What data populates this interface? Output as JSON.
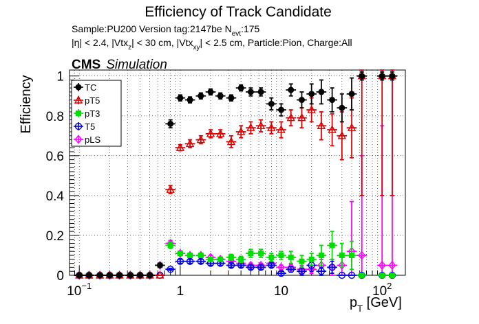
{
  "chart_data": {
    "type": "scatter",
    "title": "Efficiency of Track Candidate",
    "subtitle_lines": [
      [
        "Sample:PU200   Version tag:2147be  N",
        "evt",
        ":175"
      ],
      [
        "|η| < 2.4, |Vtx",
        "z",
        "| < 30 cm, |Vtx",
        "xy",
        "| < 2.5 cm, Particle:Pion, Charge:All"
      ]
    ],
    "cms_label": "CMS",
    "cms_sublabel": "Simulation",
    "ylabel": "Efficiency",
    "xlabel_main": "p",
    "xlabel_sub": "T",
    "xlabel_unit": " [GeV]",
    "xscale": "log",
    "xlim": [
      0.08,
      170
    ],
    "ylim": [
      0,
      1.03
    ],
    "x_tick_labels": [
      {
        "value": 0.1,
        "base": "10",
        "exp": "−1"
      },
      {
        "value": 1,
        "base": "1",
        "exp": ""
      },
      {
        "value": 10,
        "base": "10",
        "exp": ""
      },
      {
        "value": 100,
        "base": "10",
        "exp": "2"
      }
    ],
    "y_ticks": [
      0,
      0.2,
      0.4,
      0.6,
      0.8,
      1
    ],
    "y_tick_labels": [
      "0",
      "0.2",
      "0.4",
      "0.6",
      "0.8",
      "1"
    ],
    "grid": true,
    "legend_position": "top-left",
    "series": [
      {
        "name": "TC",
        "color": "#000000",
        "marker": "filled-circle",
        "points": [
          {
            "x": 0.1,
            "y": 0
          },
          {
            "x": 0.125,
            "y": 0
          },
          {
            "x": 0.16,
            "y": 0
          },
          {
            "x": 0.2,
            "y": 0
          },
          {
            "x": 0.25,
            "y": 0
          },
          {
            "x": 0.32,
            "y": 0
          },
          {
            "x": 0.4,
            "y": 0
          },
          {
            "x": 0.5,
            "y": 0
          },
          {
            "x": 0.63,
            "y": 0.05
          },
          {
            "x": 0.8,
            "y": 0.76,
            "err": 0.02
          },
          {
            "x": 1,
            "y": 0.89,
            "err": 0.015
          },
          {
            "x": 1.25,
            "y": 0.88,
            "err": 0.015
          },
          {
            "x": 1.6,
            "y": 0.9,
            "err": 0.015
          },
          {
            "x": 2,
            "y": 0.92,
            "err": 0.015
          },
          {
            "x": 2.5,
            "y": 0.9,
            "err": 0.015
          },
          {
            "x": 3.2,
            "y": 0.89,
            "err": 0.015
          },
          {
            "x": 4,
            "y": 0.94,
            "err": 0.015
          },
          {
            "x": 5,
            "y": 0.92,
            "err": 0.02
          },
          {
            "x": 6.3,
            "y": 0.92,
            "err": 0.02
          },
          {
            "x": 8,
            "y": 0.86,
            "err": 0.03
          },
          {
            "x": 10,
            "y": 0.83,
            "err": 0.03
          },
          {
            "x": 12.5,
            "y": 0.93,
            "err": 0.03
          },
          {
            "x": 16,
            "y": 0.88,
            "err": 0.04
          },
          {
            "x": 20,
            "y": 0.91,
            "err": 0.05
          },
          {
            "x": 25,
            "y": 0.92,
            "err": 0.06
          },
          {
            "x": 32,
            "y": 0.88,
            "err": 0.06
          },
          {
            "x": 40,
            "y": 0.84,
            "err": 0.07
          },
          {
            "x": 50,
            "y": 0.91,
            "err": 0.08
          },
          {
            "x": 63,
            "y": 1,
            "err": 0.02
          },
          {
            "x": 100,
            "y": 1,
            "err": 0.02
          },
          {
            "x": 126,
            "y": 1,
            "err": 0.02
          }
        ]
      },
      {
        "name": "pT5",
        "color": "#dd0000",
        "marker": "open-triangle",
        "points": [
          {
            "x": 0.1,
            "y": 0
          },
          {
            "x": 0.125,
            "y": 0
          },
          {
            "x": 0.16,
            "y": 0
          },
          {
            "x": 0.2,
            "y": 0
          },
          {
            "x": 0.25,
            "y": 0
          },
          {
            "x": 0.32,
            "y": 0
          },
          {
            "x": 0.4,
            "y": 0
          },
          {
            "x": 0.5,
            "y": 0
          },
          {
            "x": 0.63,
            "y": 0
          },
          {
            "x": 0.8,
            "y": 0.43,
            "err": 0.02
          },
          {
            "x": 1,
            "y": 0.64,
            "err": 0.015
          },
          {
            "x": 1.25,
            "y": 0.66,
            "err": 0.02
          },
          {
            "x": 1.6,
            "y": 0.68,
            "err": 0.02
          },
          {
            "x": 2,
            "y": 0.71,
            "err": 0.02
          },
          {
            "x": 2.5,
            "y": 0.71,
            "err": 0.02
          },
          {
            "x": 3.2,
            "y": 0.67,
            "err": 0.03
          },
          {
            "x": 4,
            "y": 0.72,
            "err": 0.03
          },
          {
            "x": 5,
            "y": 0.74,
            "err": 0.03
          },
          {
            "x": 6.3,
            "y": 0.75,
            "err": 0.03
          },
          {
            "x": 8,
            "y": 0.74,
            "err": 0.03
          },
          {
            "x": 10,
            "y": 0.73,
            "err": 0.04
          },
          {
            "x": 12.5,
            "y": 0.79,
            "err": 0.04
          },
          {
            "x": 16,
            "y": 0.79,
            "err": 0.05
          },
          {
            "x": 20,
            "y": 0.83,
            "err": 0.06
          },
          {
            "x": 25,
            "y": 0.75,
            "err": 0.07
          },
          {
            "x": 32,
            "y": 0.73,
            "err": 0.08
          },
          {
            "x": 40,
            "y": 0.7,
            "err": 0.12
          },
          {
            "x": 50,
            "y": 0.74,
            "err": 0.15
          },
          {
            "x": 63,
            "y": 1,
            "err": 0.6
          },
          {
            "x": 100,
            "y": 1,
            "err": 0.6
          },
          {
            "x": 126,
            "y": 1,
            "err": 0.6
          }
        ]
      },
      {
        "name": "pT3",
        "color": "#00dd00",
        "marker": "filled-square",
        "points": [
          {
            "x": 0.1,
            "y": 0
          },
          {
            "x": 0.125,
            "y": 0
          },
          {
            "x": 0.16,
            "y": 0
          },
          {
            "x": 0.2,
            "y": 0
          },
          {
            "x": 0.25,
            "y": 0
          },
          {
            "x": 0.32,
            "y": 0
          },
          {
            "x": 0.4,
            "y": 0
          },
          {
            "x": 0.5,
            "y": 0
          },
          {
            "x": 0.63,
            "y": 0.05
          },
          {
            "x": 0.8,
            "y": 0.15,
            "err": 0.015
          },
          {
            "x": 1,
            "y": 0.11,
            "err": 0.01
          },
          {
            "x": 1.25,
            "y": 0.1,
            "err": 0.01
          },
          {
            "x": 1.6,
            "y": 0.1,
            "err": 0.01
          },
          {
            "x": 2,
            "y": 0.08,
            "err": 0.01
          },
          {
            "x": 2.5,
            "y": 0.08,
            "err": 0.01
          },
          {
            "x": 3.2,
            "y": 0.09,
            "err": 0.015
          },
          {
            "x": 4,
            "y": 0.08,
            "err": 0.015
          },
          {
            "x": 5,
            "y": 0.11,
            "err": 0.02
          },
          {
            "x": 6.3,
            "y": 0.11,
            "err": 0.02
          },
          {
            "x": 8,
            "y": 0.09,
            "err": 0.02
          },
          {
            "x": 10,
            "y": 0.1,
            "err": 0.02
          },
          {
            "x": 12.5,
            "y": 0.09,
            "err": 0.03
          },
          {
            "x": 16,
            "y": 0.07,
            "err": 0.03
          },
          {
            "x": 20,
            "y": 0.08,
            "err": 0.03
          },
          {
            "x": 25,
            "y": 0.1,
            "err": 0.05
          },
          {
            "x": 32,
            "y": 0.15,
            "err": 0.07
          },
          {
            "x": 40,
            "y": 0.1,
            "err": 0.06
          },
          {
            "x": 50,
            "y": 0.1,
            "err": 0.07
          },
          {
            "x": 63,
            "y": 0
          },
          {
            "x": 100,
            "y": 0
          },
          {
            "x": 126,
            "y": 0
          }
        ]
      },
      {
        "name": "T5",
        "color": "#0000dd",
        "marker": "open-circle",
        "points": [
          {
            "x": 0.1,
            "y": 0
          },
          {
            "x": 0.125,
            "y": 0
          },
          {
            "x": 0.16,
            "y": 0
          },
          {
            "x": 0.2,
            "y": 0
          },
          {
            "x": 0.25,
            "y": 0
          },
          {
            "x": 0.32,
            "y": 0
          },
          {
            "x": 0.4,
            "y": 0
          },
          {
            "x": 0.5,
            "y": 0
          },
          {
            "x": 0.63,
            "y": 0
          },
          {
            "x": 0.8,
            "y": 0.03,
            "err": 0.005
          },
          {
            "x": 1,
            "y": 0.07,
            "err": 0.01
          },
          {
            "x": 1.25,
            "y": 0.07,
            "err": 0.01
          },
          {
            "x": 1.6,
            "y": 0.07,
            "err": 0.01
          },
          {
            "x": 2,
            "y": 0.06,
            "err": 0.01
          },
          {
            "x": 2.5,
            "y": 0.06,
            "err": 0.01
          },
          {
            "x": 3.2,
            "y": 0.05,
            "err": 0.01
          },
          {
            "x": 4,
            "y": 0.05,
            "err": 0.01
          },
          {
            "x": 5,
            "y": 0.04,
            "err": 0.01
          },
          {
            "x": 6.3,
            "y": 0.04,
            "err": 0.01
          },
          {
            "x": 8,
            "y": 0.05,
            "err": 0.01
          },
          {
            "x": 10,
            "y": 0.01,
            "err": 0.01
          },
          {
            "x": 12.5,
            "y": 0.03,
            "err": 0.015
          },
          {
            "x": 16,
            "y": 0.02,
            "err": 0.02
          },
          {
            "x": 20,
            "y": 0.05,
            "err": 0.03
          },
          {
            "x": 25,
            "y": 0.02,
            "err": 0.02
          },
          {
            "x": 32,
            "y": 0.04,
            "err": 0.03
          },
          {
            "x": 40,
            "y": 0
          },
          {
            "x": 50,
            "y": 0
          },
          {
            "x": 63,
            "y": 0
          },
          {
            "x": 100,
            "y": 0
          },
          {
            "x": 126,
            "y": 0
          }
        ]
      },
      {
        "name": "pLS",
        "color": "#ff00ff",
        "marker": "open-diamond",
        "points": [
          {
            "x": 0.1,
            "y": 0
          },
          {
            "x": 0.125,
            "y": 0
          },
          {
            "x": 0.16,
            "y": 0
          },
          {
            "x": 0.2,
            "y": 0
          },
          {
            "x": 0.25,
            "y": 0
          },
          {
            "x": 0.32,
            "y": 0
          },
          {
            "x": 0.4,
            "y": 0
          },
          {
            "x": 0.5,
            "y": 0
          },
          {
            "x": 0.63,
            "y": 0.05
          },
          {
            "x": 0.8,
            "y": 0.16,
            "err": 0.015
          },
          {
            "x": 1,
            "y": 0.11,
            "err": 0.01
          },
          {
            "x": 1.25,
            "y": 0.1,
            "err": 0.01
          },
          {
            "x": 1.6,
            "y": 0.1,
            "err": 0.01
          },
          {
            "x": 2,
            "y": 0.09,
            "err": 0.01
          },
          {
            "x": 2.5,
            "y": 0.08,
            "err": 0.01
          },
          {
            "x": 3.2,
            "y": 0.07,
            "err": 0.01
          },
          {
            "x": 4,
            "y": 0.06,
            "err": 0.01
          },
          {
            "x": 5,
            "y": 0.05,
            "err": 0.01
          },
          {
            "x": 6.3,
            "y": 0.05,
            "err": 0.01
          },
          {
            "x": 8,
            "y": 0.06,
            "err": 0.01
          },
          {
            "x": 10,
            "y": 0.04,
            "err": 0.01
          },
          {
            "x": 12.5,
            "y": 0.04,
            "err": 0.015
          },
          {
            "x": 16,
            "y": 0.03,
            "err": 0.02
          },
          {
            "x": 20,
            "y": 0.03,
            "err": 0.02
          },
          {
            "x": 25,
            "y": 0.05,
            "err": 0.03
          },
          {
            "x": 32,
            "y": 0.04,
            "err": 0.04
          },
          {
            "x": 40,
            "y": 0.05,
            "err": 0.05
          },
          {
            "x": 50,
            "y": 0.12,
            "err": 0.25
          },
          {
            "x": 63,
            "y": 0.1,
            "err": 0.5
          },
          {
            "x": 100,
            "y": 0.05,
            "err": 0.7
          },
          {
            "x": 126,
            "y": 0.05,
            "err": 0.95
          }
        ]
      }
    ]
  }
}
